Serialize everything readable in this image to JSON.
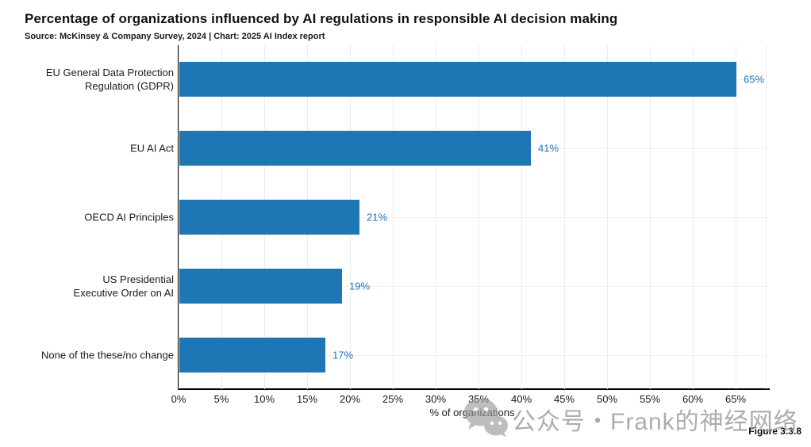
{
  "header": {
    "title": "Percentage of organizations influenced by AI regulations in responsible AI decision making",
    "subtitle": "Source: McKinsey & Company Survey, 2024 | Chart: 2025 AI Index report"
  },
  "footer": {
    "figure_label": "Figure 3.3.8"
  },
  "watermark": {
    "icon": "wechat-icon",
    "text": "公众号・Frank的神经网络"
  },
  "colors": {
    "bar": "#1f76b4",
    "value_label": "#2175bc",
    "axis": "#000000",
    "gridline": "#ececec",
    "watermark": "#9e9e9e"
  },
  "chart_data": {
    "type": "bar",
    "orientation": "horizontal",
    "title": "Percentage of organizations influenced by AI regulations in responsible AI decision making",
    "xlabel": "% of organizations",
    "ylabel": "",
    "categories": [
      "EU General Data Protection Regulation (GDPR)",
      "EU AI Act",
      "OECD AI Principles",
      "US Presidential Executive Order on AI",
      "None of the these/no change"
    ],
    "category_label_lines": [
      [
        "EU General Data Protection",
        "Regulation (GDPR)"
      ],
      [
        "EU AI Act"
      ],
      [
        "OECD AI Principles"
      ],
      [
        "US Presidential",
        "Executive Order on AI"
      ],
      [
        "None of the these/no change"
      ]
    ],
    "values": [
      65,
      41,
      21,
      19,
      17
    ],
    "value_labels": [
      "65%",
      "41%",
      "21%",
      "19%",
      "17%"
    ],
    "xlim": [
      0,
      68.5
    ],
    "xtick_step": 5,
    "xticks": [
      "0%",
      "5%",
      "10%",
      "15%",
      "20%",
      "25%",
      "30%",
      "35%",
      "40%",
      "45%",
      "50%",
      "55%",
      "60%",
      "65%"
    ],
    "grid": true,
    "legend": "none"
  }
}
